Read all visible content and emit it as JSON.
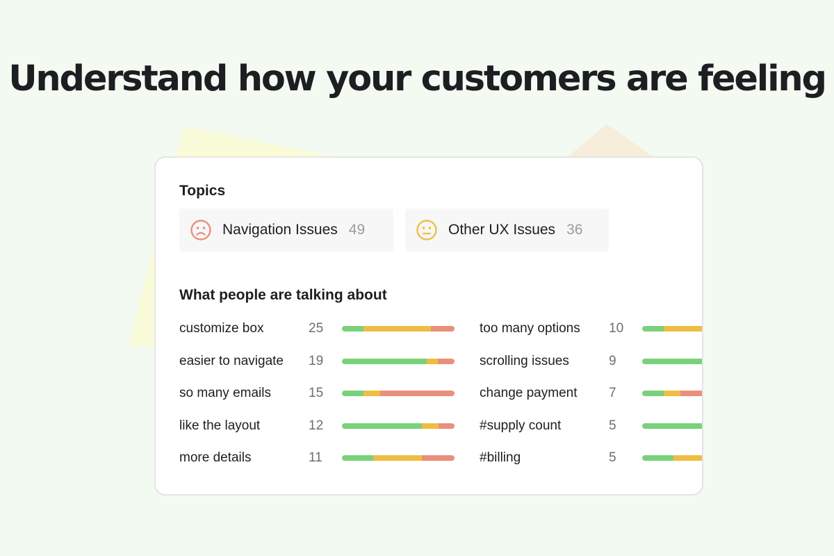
{
  "headline": "Understand how your customers are feeling",
  "colors": {
    "background": "#f3faf2",
    "positive": "#7ad17b",
    "neutral": "#efbd44",
    "negative": "#ea8f7b",
    "deco_yellow": "#fafbd8",
    "deco_beige": "#f6eedb"
  },
  "topics": {
    "title": "Topics",
    "chips": [
      {
        "label": "Navigation Issues",
        "count": "49",
        "icon": "frown-face-icon",
        "color": "#ea8f7b"
      },
      {
        "label": "Other UX Issues",
        "count": "36",
        "icon": "neutral-face-icon",
        "color": "#efbd44"
      }
    ]
  },
  "talking": {
    "title": "What people are talking about",
    "left": [
      {
        "label": "customize box",
        "count": "25",
        "sentiment": [
          0.19,
          0.6,
          0.21
        ]
      },
      {
        "label": "easier to navigate",
        "count": "19",
        "sentiment": [
          0.75,
          0.1,
          0.15
        ]
      },
      {
        "label": "so many emails",
        "count": "15",
        "sentiment": [
          0.19,
          0.15,
          0.66
        ]
      },
      {
        "label": "like the layout",
        "count": "12",
        "sentiment": [
          0.71,
          0.15,
          0.14
        ]
      },
      {
        "label": "more details",
        "count": "11",
        "sentiment": [
          0.28,
          0.43,
          0.29
        ]
      }
    ],
    "right": [
      {
        "label": "too many options",
        "count": "10",
        "sentiment": [
          0.19,
          0.6,
          0.21
        ]
      },
      {
        "label": "scrolling issues",
        "count": "9",
        "sentiment": [
          1.0,
          0.0,
          0.0
        ]
      },
      {
        "label": "change payment",
        "count": "7",
        "sentiment": [
          0.19,
          0.15,
          0.66
        ]
      },
      {
        "label": "#supply count",
        "count": "5",
        "sentiment": [
          1.0,
          0.0,
          0.0
        ]
      },
      {
        "label": "#billing",
        "count": "5",
        "sentiment": [
          0.28,
          0.43,
          0.29
        ]
      }
    ]
  }
}
